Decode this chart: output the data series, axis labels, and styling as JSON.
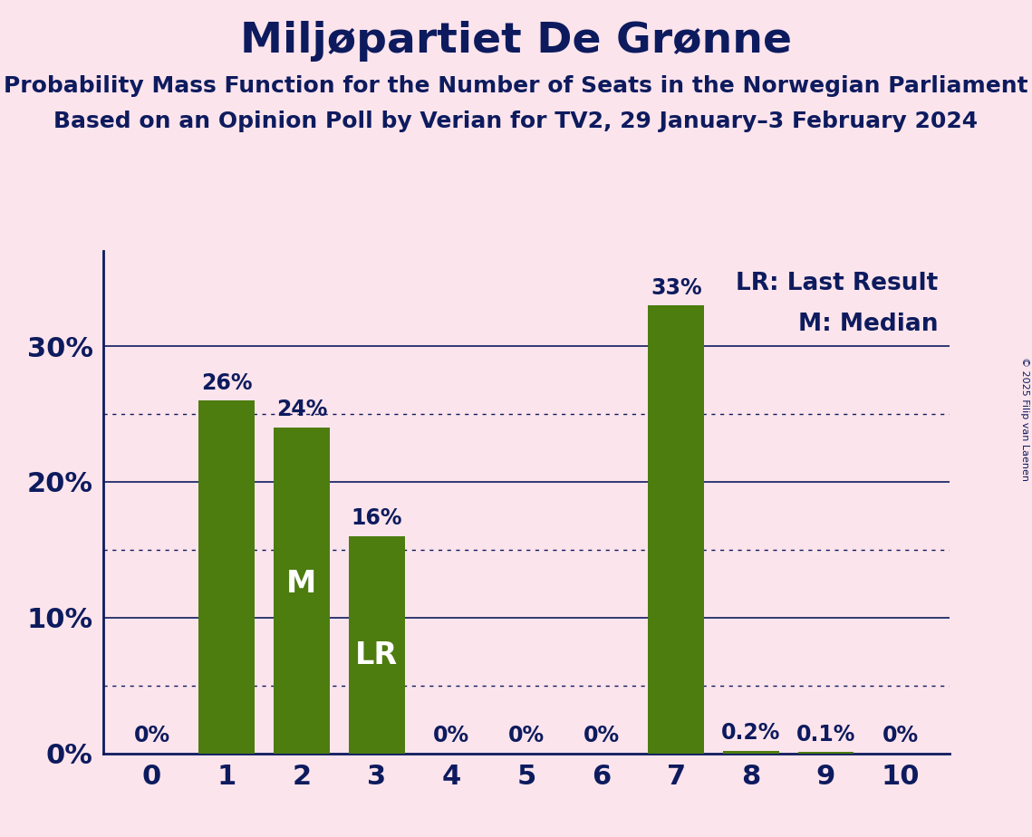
{
  "title": "Miljøpartiet De Grønne",
  "subtitle1": "Probability Mass Function for the Number of Seats in the Norwegian Parliament",
  "subtitle2": "Based on an Opinion Poll by Verian for TV2, 29 January–3 February 2024",
  "copyright": "© 2025 Filip van Laenen",
  "categories": [
    0,
    1,
    2,
    3,
    4,
    5,
    6,
    7,
    8,
    9,
    10
  ],
  "values": [
    0.0,
    26.0,
    24.0,
    16.0,
    0.0,
    0.0,
    0.0,
    33.0,
    0.2,
    0.1,
    0.0
  ],
  "bar_color": "#4d7c0f",
  "background_color": "#fce4ec",
  "text_color": "#0d1b5e",
  "title_fontsize": 34,
  "subtitle_fontsize": 18,
  "bar_label_fontsize": 17,
  "tick_fontsize": 22,
  "ylabel_labels": [
    "0%",
    "10%",
    "20%",
    "30%"
  ],
  "yticks": [
    0,
    10,
    20,
    30
  ],
  "ylim": [
    0,
    37
  ],
  "legend_lr": "LR: Last Result",
  "legend_m": "M: Median",
  "legend_fontsize": 19,
  "median_seat": 2,
  "lr_seat": 3,
  "bar_labels": [
    "0%",
    "26%",
    "24%",
    "16%",
    "0%",
    "0%",
    "0%",
    "33%",
    "0.2%",
    "0.1%",
    "0%"
  ],
  "grid_color": "#0d1b5e",
  "dotted_grid_values": [
    5,
    15,
    25
  ],
  "solid_grid_values": [
    10,
    20,
    30
  ]
}
